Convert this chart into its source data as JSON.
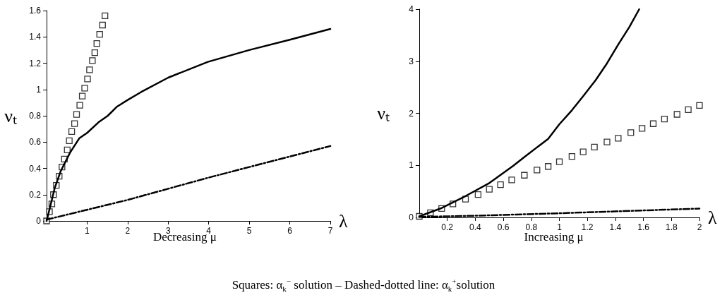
{
  "chart_data": [
    {
      "type": "line",
      "xlabel": "λ",
      "ylabel": "νₜ",
      "annotations": [
        "Decreasing μ"
      ],
      "xlim": [
        0,
        7
      ],
      "ylim": [
        0,
        1.6
      ],
      "xticks": [
        1,
        2,
        3,
        4,
        5,
        6,
        7
      ],
      "yticks": [
        0,
        0.2,
        0.4,
        0.6,
        0.8,
        1,
        1.2,
        1.4,
        1.6
      ],
      "grid": false,
      "series": [
        {
          "type": "scatter",
          "marker": "square",
          "color": "#000000",
          "x": [
            0,
            0.07,
            0.13,
            0.17,
            0.24,
            0.31,
            0.38,
            0.44,
            0.51,
            0.56,
            0.62,
            0.69,
            0.74,
            0.82,
            0.88,
            0.94,
            1.01,
            1.06,
            1.13,
            1.19,
            1.24,
            1.31,
            1.38,
            1.44
          ],
          "values": [
            0,
            0.07,
            0.13,
            0.2,
            0.27,
            0.34,
            0.41,
            0.47,
            0.54,
            0.61,
            0.68,
            0.74,
            0.81,
            0.88,
            0.95,
            1.01,
            1.08,
            1.15,
            1.22,
            1.28,
            1.35,
            1.42,
            1.49,
            1.56
          ]
        },
        {
          "marker": "none",
          "line_style": "solid",
          "color": "#000000",
          "x": [
            0,
            0.09,
            0.2,
            0.35,
            0.58,
            0.81,
            1,
            1.28,
            1.51,
            1.74,
            2,
            2.33,
            3,
            3.98,
            5,
            6.02,
            7
          ],
          "values": [
            0,
            0.11,
            0.25,
            0.38,
            0.52,
            0.63,
            0.67,
            0.75,
            0.8,
            0.87,
            0.92,
            0.98,
            1.09,
            1.21,
            1.3,
            1.38,
            1.46
          ]
        },
        {
          "marker": "none",
          "line_style": "dashed",
          "color": "#000000",
          "x": [
            0,
            2,
            3,
            4,
            5,
            6,
            7
          ],
          "values": [
            0.01,
            0.16,
            0.245,
            0.33,
            0.41,
            0.49,
            0.57
          ]
        }
      ]
    },
    {
      "type": "line",
      "xlabel": "λ",
      "ylabel": "νₜ",
      "annotations": [
        "Increasing μ",
        "Squares: α$_{k}$$^{−}$ solution – Dashed-dotted line: α$_{k}$$^{+}$solution"
      ],
      "xlim": [
        0,
        2
      ],
      "ylim": [
        0,
        4
      ],
      "xticks": [
        0.2,
        0.4,
        0.6,
        0.8,
        1,
        1.2,
        1.4,
        1.6,
        1.8,
        2
      ],
      "yticks": [
        0,
        1,
        2,
        3,
        4
      ],
      "grid": false,
      "series": [
        {
          "type": "scatter",
          "marker": "square",
          "color": "#000000",
          "x": [
            0,
            0.08,
            0.16,
            0.24,
            0.33,
            0.42,
            0.5,
            0.58,
            0.66,
            0.75,
            0.84,
            0.92,
            1,
            1.09,
            1.17,
            1.25,
            1.34,
            1.42,
            1.51,
            1.59,
            1.67,
            1.75,
            1.84,
            1.92,
            2
          ],
          "values": [
            0.02,
            0.09,
            0.17,
            0.26,
            0.35,
            0.44,
            0.54,
            0.63,
            0.72,
            0.81,
            0.91,
            0.98,
            1.07,
            1.17,
            1.26,
            1.35,
            1.45,
            1.52,
            1.63,
            1.71,
            1.8,
            1.89,
            1.98,
            2.07,
            2.15
          ]
        },
        {
          "marker": "none",
          "line_style": "solid",
          "color": "#000000",
          "x": [
            0,
            0.16,
            0.33,
            0.5,
            0.67,
            0.75,
            0.92,
            1,
            1.09,
            1.17,
            1.26,
            1.34,
            1.42,
            1.5,
            1.57
          ],
          "values": [
            0.02,
            0.18,
            0.41,
            0.66,
            0.99,
            1.16,
            1.51,
            1.79,
            2.06,
            2.33,
            2.64,
            2.96,
            3.32,
            3.66,
            4
          ]
        },
        {
          "marker": "none",
          "line_style": "dashed",
          "color": "#000000",
          "x": [
            0,
            0.36,
            1,
            2
          ],
          "values": [
            0.01,
            0.03,
            0.08,
            0.17
          ]
        }
      ]
    }
  ]
}
